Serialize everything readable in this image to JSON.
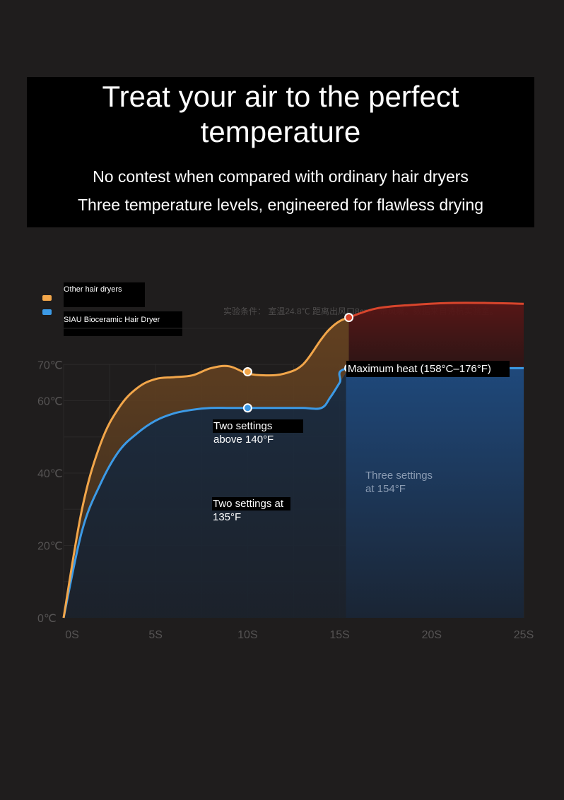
{
  "header": {
    "title": "Treat your air to the perfect temperature",
    "subtitle_1": "No contest when compared with ordinary hair dryers",
    "subtitle_2": "Three temperature levels, engineered for flawless drying"
  },
  "legend": {
    "other": "Other hair dryers",
    "siau": "SIAU Bioceramic Hair Dryer"
  },
  "note": "实验条件： 室温24.8℃  距离出风口8cm，带风嘴。数据来自诗杭实验室。",
  "annotations": {
    "max_heat": "Maximum heat (158°C–176°F)",
    "above_140_line1": "Two settings",
    "above_140_line2": "above 140°F",
    "at_135_line1": "Two settings at",
    "at_135_line2": "135°F",
    "three_154_line1": "Three settings",
    "three_154_line2": "at 154°F"
  },
  "colors": {
    "background": "#1f1d1d",
    "other_line": "#f2a64a",
    "siau_line": "#3c9ae6",
    "max_line": "#d8452c",
    "siau_fill": "#1c3a60",
    "max_fill": "#4a1212"
  },
  "chart_data": {
    "type": "line",
    "xlabel": "",
    "ylabel": "",
    "xlim": [
      0,
      25
    ],
    "ylim": [
      0,
      80
    ],
    "x_ticks": [
      "0S",
      "5S",
      "10S",
      "15S",
      "20S",
      "25S"
    ],
    "y_ticks": [
      "0℃",
      "20℃",
      "40℃",
      "60℃",
      "70℃"
    ],
    "y_tick_values": [
      0,
      20,
      40,
      60,
      70
    ],
    "grid": true,
    "legend_position": "top-left",
    "series": [
      {
        "name": "Other hair dryers",
        "x": [
          0,
          1,
          2,
          3,
          4,
          5,
          6,
          7,
          8,
          9,
          10,
          11,
          12,
          13,
          14,
          14.5,
          15,
          15.5
        ],
        "y": [
          0,
          30,
          48,
          58,
          63.5,
          66,
          66.5,
          67,
          69,
          69.5,
          67.5,
          67,
          67.5,
          70,
          77,
          80,
          82,
          83
        ]
      },
      {
        "name": "SIAU Bioceramic Hair Dryer",
        "x": [
          0,
          1,
          2,
          3,
          4,
          5,
          6,
          7,
          8,
          9,
          10,
          11,
          12,
          13,
          14,
          14.5,
          15,
          15.5,
          20,
          25
        ],
        "y": [
          0,
          24,
          37,
          46,
          51,
          54.5,
          56.5,
          57.5,
          58,
          58,
          58,
          58,
          58,
          58,
          58,
          61,
          65,
          69,
          69,
          69
        ]
      },
      {
        "name": "Maximum heat (158°C–176°F)",
        "x": [
          15.5,
          17,
          19,
          21,
          23,
          25
        ],
        "y": [
          83,
          85.5,
          86.5,
          87,
          87,
          86.8
        ]
      }
    ],
    "markers": [
      {
        "series": "Other hair dryers",
        "x": 10,
        "y": 68
      },
      {
        "series": "SIAU Bioceramic Hair Dryer",
        "x": 10,
        "y": 58
      },
      {
        "series": "SIAU Bioceramic Hair Dryer",
        "x": 15.5,
        "y": 69
      },
      {
        "series": "Maximum heat (158°C–176°F)",
        "x": 15.5,
        "y": 83
      }
    ]
  }
}
